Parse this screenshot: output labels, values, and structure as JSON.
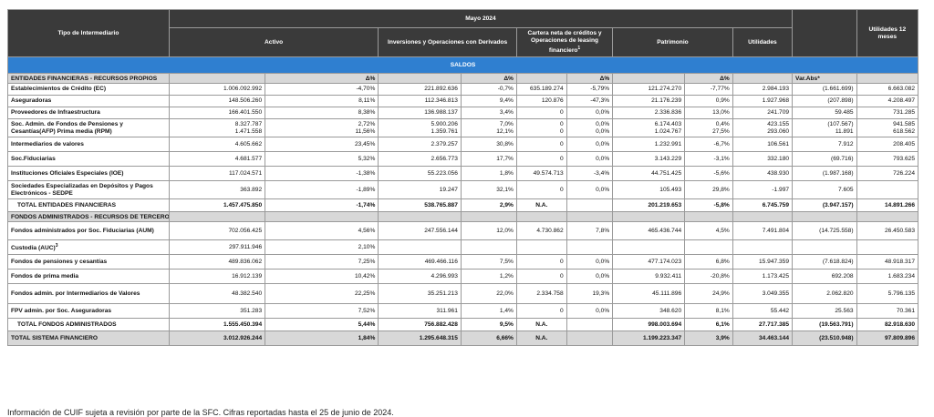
{
  "header": {
    "tipo": "Tipo de Intermediario",
    "mayo": "Mayo 2024",
    "activo": "Activo",
    "inversiones": "Inversiones y Operaciones con Derivados",
    "cartera": "Cartera neta de créditos y Operaciones de leasing financiero",
    "cartera_sup": "1",
    "patrimonio": "Patrimonio",
    "utilidades": "Utilidades",
    "utilidades12": "Utilidades 12 meses"
  },
  "band": "SALDOS",
  "sections": [
    {
      "title": "ENTIDADES FINANCIERAS - RECURSOS PROPIOS",
      "delta": "Δ%",
      "varabs": "Var.Abs*",
      "rows": [
        {
          "label": "Establecimientos de Crédito (EC)",
          "activo": "1.006.092.992",
          "d1": "-4,70%",
          "inv": "221.892.636",
          "d2": "-0,7%",
          "cart": "635.189.274",
          "d3": "-5,79%",
          "pat": "121.274.270",
          "d4": "-7,77%",
          "util": "2.984.193",
          "var": "(1.661.699)",
          "u12": "6.663.082"
        },
        {
          "label": "Aseguradoras",
          "activo": "148.506.260",
          "d1": "8,11%",
          "inv": "112.346.813",
          "d2": "9,4%",
          "cart": "120.876",
          "d3": "-47,3%",
          "pat": "21.176.239",
          "d4": "0,9%",
          "util": "1.927.968",
          "var": "(207.898)",
          "u12": "4.208.497"
        },
        {
          "label": "Proveedores de Infraestructura",
          "activo": "166.401.550",
          "d1": "8,38%",
          "inv": "136.988.137",
          "d2": "3,4%",
          "cart": "0",
          "d3": "0,0%",
          "pat": "2.336.836",
          "d4": "13,0%",
          "util": "241.709",
          "var": "59.485",
          "u12": "731.285"
        },
        {
          "label": "Soc. Admin. de Fondos de Pensiones y Cesantías(AFP) Prima media (RPM)",
          "activo": "8.327.787\n1.471.558",
          "d1": "2,72%\n11,56%",
          "inv": "5.900.206\n1.359.761",
          "d2": "7,0%\n12,1%",
          "cart": "0\n0",
          "d3": "0,0%\n0,0%",
          "pat": "6.174.403\n1.024.767",
          "d4": "0,4%\n27,5%",
          "util": "423.155\n293.060",
          "var": "(107.567)\n11.891",
          "u12": "941.585\n618.562"
        },
        {
          "label": "Intermediarios de valores",
          "activo": "4.605.662",
          "d1": "23,45%",
          "inv": "2.379.257",
          "d2": "30,8%",
          "cart": "0",
          "d3": "0,0%",
          "pat": "1.232.991",
          "d4": "-6,7%",
          "util": "106.561",
          "var": "7.912",
          "u12": "208.405"
        },
        {
          "label": "Soc.Fiduciarias",
          "activo": "4.681.577",
          "d1": "5,32%",
          "inv": "2.656.773",
          "d2": "17,7%",
          "cart": "0",
          "d3": "0,0%",
          "pat": "3.143.229",
          "d4": "-3,1%",
          "util": "332.180",
          "var": "(69.716)",
          "u12": "793.625"
        },
        {
          "label": "Instituciones Oficiales Especiales (IOE)",
          "activo": "117.024.571",
          "d1": "-1,38%",
          "inv": "55.223.056",
          "d2": "1,8%",
          "cart": "49.574.713",
          "d3": "-3,4%",
          "pat": "44.751.425",
          "d4": "-5,6%",
          "util": "438.930",
          "var": "(1.987.168)",
          "u12": "726.224"
        },
        {
          "label": "Sociedades Especializadas en Depósitos y Pagos Electrónicos - SEDPE",
          "activo": "363.892",
          "d1": "-1,89%",
          "inv": "19.247",
          "d2": "32,1%",
          "cart": "0",
          "d3": "0,0%",
          "pat": "105.493",
          "d4": "29,8%",
          "util": "-1.997",
          "var": "7.605",
          "u12": ""
        }
      ],
      "total": {
        "label": "TOTAL ENTIDADES FINANCIERAS",
        "activo": "1.457.475.850",
        "d1": "-1,74%",
        "inv": "538.765.887",
        "d2": "2,9%",
        "cart": "N.A.",
        "d3": "",
        "pat": "201.219.653",
        "d4": "-5,8%",
        "util": "6.745.759",
        "var": "(3.947.157)",
        "u12": "14.891.266"
      }
    },
    {
      "title": "FONDOS ADMINISTRADOS - RECURSOS DE TERCEROS",
      "rows": [
        {
          "label": "Fondos administrados por Soc. Fiduciarias (AUM)",
          "activo": "702.056.425",
          "d1": "4,56%",
          "inv": "247.556.144",
          "d2": "12,0%",
          "cart": "4.730.862",
          "d3": "7,8%",
          "pat": "465.436.744",
          "d4": "4,5%",
          "util": "7.491.804",
          "var": "(14.725.558)",
          "u12": "26.450.583"
        },
        {
          "label": "Custodia (AUC)",
          "sup": "3",
          "activo": "297.911.946",
          "d1": "2,10%",
          "inv": "",
          "d2": "",
          "cart": "",
          "d3": "",
          "pat": "",
          "d4": "",
          "util": "",
          "var": "",
          "u12": ""
        },
        {
          "label": "Fondos de pensiones y cesantías",
          "activo": "489.836.062",
          "d1": "7,25%",
          "inv": "469.466.116",
          "d2": "7,5%",
          "cart": "0",
          "d3": "0,0%",
          "pat": "477.174.023",
          "d4": "6,8%",
          "util": "15.947.359",
          "var": "(7.618.824)",
          "u12": "48.918.317"
        },
        {
          "label": "Fondos de prima media",
          "activo": "16.912.139",
          "d1": "10,42%",
          "inv": "4.296.993",
          "d2": "1,2%",
          "cart": "0",
          "d3": "0,0%",
          "pat": "9.932.411",
          "d4": "-20,8%",
          "util": "1.173.425",
          "var": "692.208",
          "u12": "1.683.234"
        },
        {
          "label": "Fondos admin. por Intermediarios de Valores",
          "activo": "48.382.540",
          "d1": "22,25%",
          "inv": "35.251.213",
          "d2": "22,0%",
          "cart": "2.334.758",
          "d3": "19,3%",
          "pat": "45.111.896",
          "d4": "24,9%",
          "util": "3.049.355",
          "var": "2.062.820",
          "u12": "5.796.135"
        },
        {
          "label": "FPV admin. por Soc. Aseguradoras",
          "activo": "351.283",
          "d1": "7,52%",
          "inv": "311.961",
          "d2": "1,4%",
          "cart": "0",
          "d3": "0,0%",
          "pat": "348.620",
          "d4": "8,1%",
          "util": "55.442",
          "var": "25.563",
          "u12": "70.361"
        }
      ],
      "total": {
        "label": "TOTAL FONDOS ADMINISTRADOS",
        "activo": "1.555.450.394",
        "d1": "5,44%",
        "inv": "756.882.428",
        "d2": "9,5%",
        "cart": "N.A.",
        "d3": "",
        "pat": "998.003.694",
        "d4": "6,1%",
        "util": "27.717.385",
        "var": "(19.563.791)",
        "u12": "82.918.630"
      }
    }
  ],
  "grand_total": {
    "label": "TOTAL SISTEMA FINANCIERO",
    "activo": "3.012.926.244",
    "d1": "1,84%",
    "inv": "1.295.648.315",
    "d2": "6,66%",
    "cart": "N.A.",
    "d3": "",
    "pat": "1.199.223.347",
    "d4": "3,9%",
    "util": "34.463.144",
    "var": "(23.510.948)",
    "u12": "97.809.896"
  },
  "footer": "Información de CUIF sujeta a revisión por parte de la SFC. Cifras reportadas hasta el 25 de junio de 2024."
}
